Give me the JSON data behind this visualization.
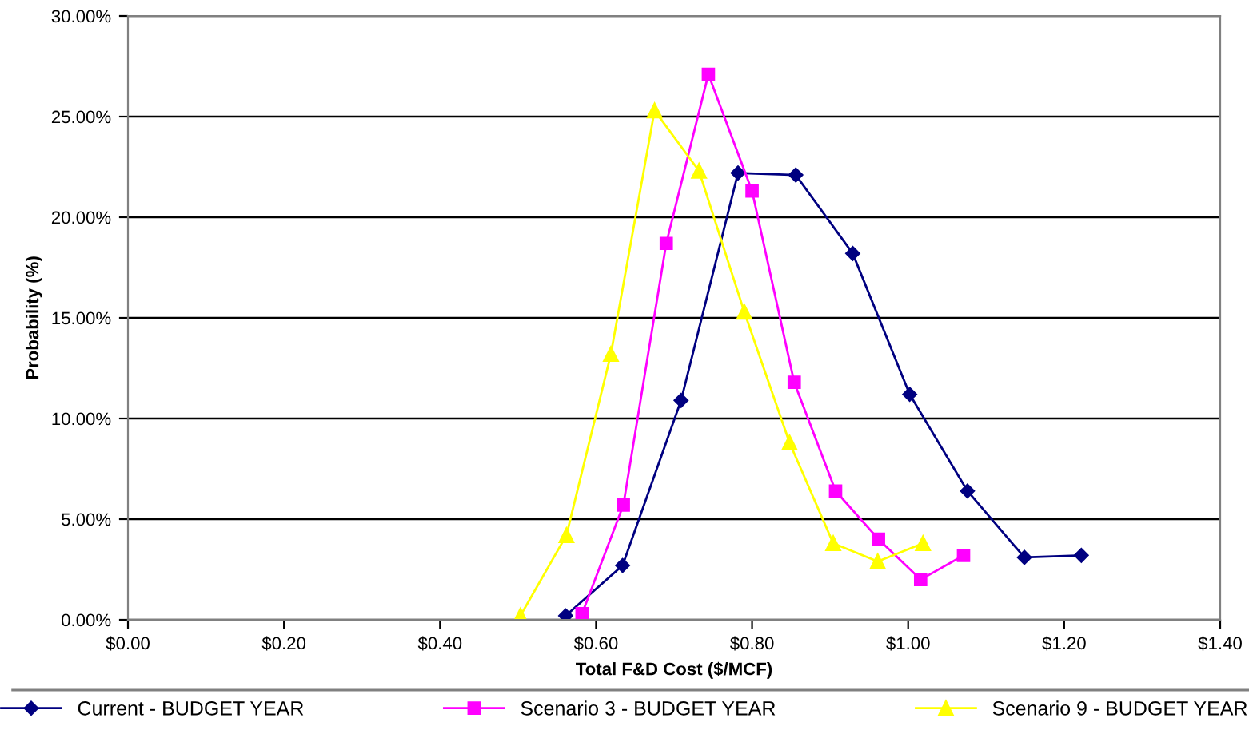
{
  "chart_data": {
    "type": "line",
    "xlabel": "Total F&D Cost ($/MCF)",
    "ylabel": "Probability (%)",
    "xlim": [
      0,
      1.4
    ],
    "ylim": [
      0,
      30
    ],
    "xticks": [
      {
        "value": 0,
        "label": "$0.00"
      },
      {
        "value": 0.2,
        "label": "$0.20"
      },
      {
        "value": 0.4,
        "label": "$0.40"
      },
      {
        "value": 0.6,
        "label": "$0.60"
      },
      {
        "value": 0.8,
        "label": "$0.80"
      },
      {
        "value": 1.0,
        "label": "$1.00"
      },
      {
        "value": 1.2,
        "label": "$1.20"
      },
      {
        "value": 1.4,
        "label": "$1.40"
      }
    ],
    "yticks": [
      {
        "value": 0,
        "label": "0.00%"
      },
      {
        "value": 5,
        "label": "5.00%"
      },
      {
        "value": 10,
        "label": "10.00%"
      },
      {
        "value": 15,
        "label": "15.00%"
      },
      {
        "value": 20,
        "label": "20.00%"
      },
      {
        "value": 25,
        "label": "25.00%"
      },
      {
        "value": 30,
        "label": "30.00%"
      }
    ],
    "grid": "y",
    "legend": "bottom",
    "line_style": "solid",
    "series": [
      {
        "name": "Current - BUDGET YEAR",
        "color": "#000080",
        "marker": "diamond",
        "x": [
          0.561,
          0.634,
          0.709,
          0.782,
          0.856,
          0.929,
          1.002,
          1.076,
          1.149,
          1.222
        ],
        "values": [
          0.2,
          2.7,
          10.9,
          22.2,
          22.1,
          18.2,
          11.2,
          6.4,
          3.1,
          3.2
        ]
      },
      {
        "name": "Scenario 3 - BUDGET YEAR",
        "color": "#ff00ff",
        "marker": "square",
        "x": [
          0.582,
          0.635,
          0.69,
          0.744,
          0.8,
          0.854,
          0.907,
          0.962,
          1.016,
          1.071
        ],
        "values": [
          0.3,
          5.7,
          18.7,
          27.1,
          21.3,
          11.8,
          6.4,
          4.0,
          2.0,
          3.2
        ]
      },
      {
        "name": "Scenario 9 - BUDGET YEAR",
        "color": "#ffff00",
        "marker": "triangle",
        "x": [
          0.503,
          0.562,
          0.619,
          0.675,
          0.732,
          0.79,
          0.848,
          0.904,
          0.961,
          1.019
        ],
        "values": [
          0.2,
          4.2,
          13.2,
          25.3,
          22.3,
          15.3,
          8.8,
          3.8,
          2.9,
          3.8
        ]
      }
    ]
  }
}
